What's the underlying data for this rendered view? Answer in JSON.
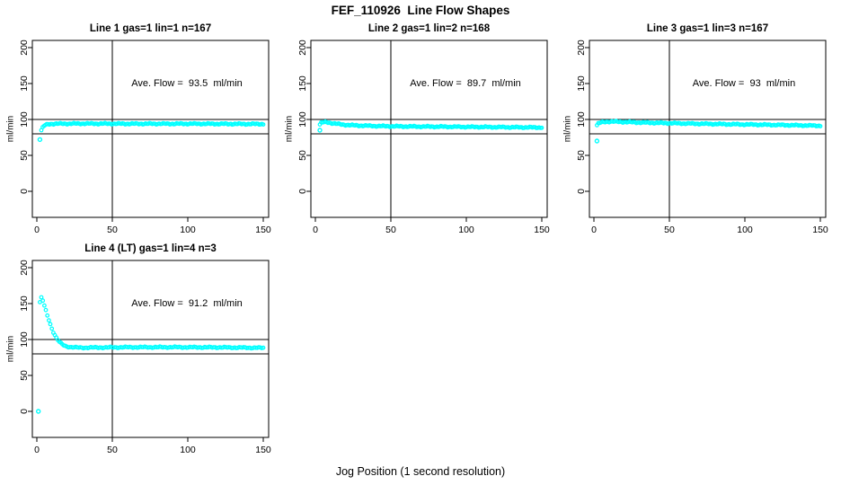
{
  "figure": {
    "title": "FEF_110926  Line Flow Shapes",
    "xlabel": "Jog Position (1 second resolution)",
    "background_color": "#ffffff",
    "axis_color": "#000000",
    "point_color": "#00ffff"
  },
  "chart_data": [
    {
      "type": "scatter",
      "title": "Line 1 gas=1 lin=1 n=167",
      "annotation": "Ave. Flow =  93.5  ml/min",
      "ave_flow_ml_min": 93.5,
      "n": 167,
      "ylabel": "ml/min",
      "xlim": [
        0,
        150
      ],
      "ylim": [
        0,
        200
      ],
      "xticks": [
        0,
        50,
        100,
        150
      ],
      "yticks": [
        0,
        50,
        100,
        150,
        200
      ],
      "ref_hlines": [
        100,
        80
      ],
      "ref_vline": 50,
      "grid": false,
      "outliers": [
        [
          2,
          72
        ]
      ],
      "x_start": 3,
      "x_end": 150,
      "n_points": 165,
      "curve_anchors": [
        [
          3,
          85
        ],
        [
          4,
          89
        ],
        [
          5,
          91.5
        ],
        [
          6,
          92.5
        ],
        [
          8,
          93.5
        ],
        [
          12,
          94
        ],
        [
          30,
          94.2
        ],
        [
          60,
          94
        ],
        [
          100,
          94
        ],
        [
          150,
          93.6
        ]
      ]
    },
    {
      "type": "scatter",
      "title": "Line 2 gas=1 lin=2 n=168",
      "annotation": "Ave. Flow =  89.7  ml/min",
      "ave_flow_ml_min": 89.7,
      "n": 168,
      "ylabel": "ml/min",
      "xlim": [
        0,
        150
      ],
      "ylim": [
        0,
        200
      ],
      "xticks": [
        0,
        50,
        100,
        150
      ],
      "yticks": [
        0,
        50,
        100,
        150,
        200
      ],
      "ref_hlines": [
        100,
        80
      ],
      "ref_vline": 50,
      "grid": false,
      "outliers": [
        [
          3,
          85
        ]
      ],
      "x_start": 3,
      "x_end": 150,
      "n_points": 166,
      "curve_anchors": [
        [
          3,
          93
        ],
        [
          4,
          95.5
        ],
        [
          6,
          96.3
        ],
        [
          8,
          96
        ],
        [
          12,
          94.5
        ],
        [
          18,
          92.8
        ],
        [
          25,
          91.8
        ],
        [
          40,
          90.8
        ],
        [
          60,
          90.2
        ],
        [
          90,
          89.8
        ],
        [
          120,
          89.3
        ],
        [
          150,
          88.8
        ]
      ]
    },
    {
      "type": "scatter",
      "title": "Line 3 gas=1 lin=3 n=167",
      "annotation": "Ave. Flow =  93  ml/min",
      "ave_flow_ml_min": 93,
      "n": 167,
      "ylabel": "ml/min",
      "xlim": [
        0,
        150
      ],
      "ylim": [
        0,
        200
      ],
      "xticks": [
        0,
        50,
        100,
        150
      ],
      "yticks": [
        0,
        50,
        100,
        150,
        200
      ],
      "ref_hlines": [
        100,
        80
      ],
      "ref_vline": 50,
      "grid": false,
      "outliers": [
        [
          2,
          70
        ]
      ],
      "x_start": 2,
      "x_end": 150,
      "n_points": 165,
      "curve_anchors": [
        [
          2,
          92
        ],
        [
          3,
          94.5
        ],
        [
          5,
          96
        ],
        [
          8,
          96.8
        ],
        [
          12,
          97
        ],
        [
          20,
          96.5
        ],
        [
          30,
          95.8
        ],
        [
          50,
          94.8
        ],
        [
          70,
          94
        ],
        [
          100,
          93
        ],
        [
          125,
          92.2
        ],
        [
          150,
          91.3
        ]
      ]
    },
    {
      "type": "scatter",
      "title": "Line 4 (LT) gas=1 lin=4 n=3",
      "annotation": "Ave. Flow =  91.2  ml/min",
      "ave_flow_ml_min": 91.2,
      "n": 3,
      "ylabel": "ml/min",
      "xlim": [
        0,
        150
      ],
      "ylim": [
        0,
        200
      ],
      "xticks": [
        0,
        50,
        100,
        150
      ],
      "yticks": [
        0,
        50,
        100,
        150,
        200
      ],
      "ref_hlines": [
        100,
        80
      ],
      "ref_vline": 50,
      "grid": false,
      "outliers": [
        [
          1,
          0
        ]
      ],
      "x_start": 2,
      "x_end": 150,
      "n_points": 150,
      "curve_anchors": [
        [
          2,
          152
        ],
        [
          3,
          158
        ],
        [
          4,
          154
        ],
        [
          5,
          147
        ],
        [
          6,
          140
        ],
        [
          7,
          133
        ],
        [
          8,
          127
        ],
        [
          9,
          121
        ],
        [
          10,
          115
        ],
        [
          11,
          110
        ],
        [
          12,
          106
        ],
        [
          13,
          102
        ],
        [
          14,
          99
        ],
        [
          15,
          96.5
        ],
        [
          16,
          94.5
        ],
        [
          17,
          93
        ],
        [
          18,
          91.8
        ],
        [
          19,
          90.8
        ],
        [
          20,
          90.2
        ],
        [
          23,
          89.3
        ],
        [
          26,
          88.8
        ],
        [
          30,
          88.6
        ],
        [
          40,
          88.8
        ],
        [
          60,
          89.2
        ],
        [
          90,
          89.3
        ],
        [
          120,
          89
        ],
        [
          150,
          88.3
        ]
      ]
    }
  ]
}
